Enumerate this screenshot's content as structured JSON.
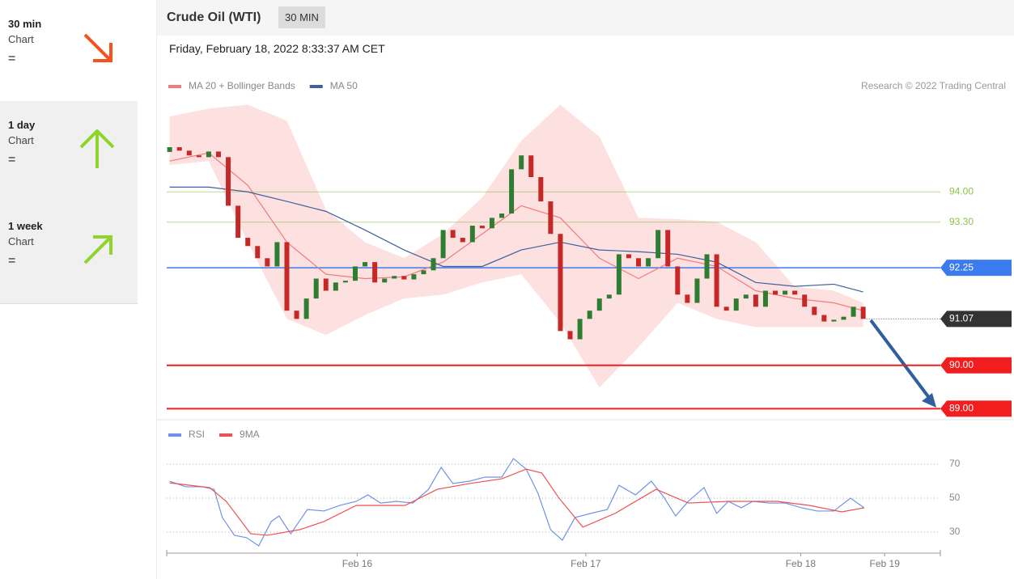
{
  "sidebar": [
    {
      "period": "30 min",
      "label": "Chart",
      "status": "="
    },
    {
      "period": "1 day",
      "label": "Chart",
      "status": "="
    },
    {
      "period": "1 week",
      "label": "Chart",
      "status": "="
    }
  ],
  "header": {
    "title": "Crude Oil (WTI)",
    "badge": "30 MIN",
    "date": "Friday, February 18, 2022 8:33:37 AM CET",
    "credit": "Research © 2022 Trading Central"
  },
  "chart_data": [
    {
      "type": "candlestick",
      "xlim": [
        -0.3,
        78.9
      ],
      "ylim": [
        88.82,
        96.0
      ],
      "up_color": "#2e7d32",
      "down_color": "#c62828",
      "open": [
        94.92,
        95.03,
        94.95,
        94.84,
        94.8,
        94.93,
        94.8,
        93.68,
        92.94,
        92.75,
        92.47,
        92.28,
        92.84,
        91.26,
        91.07,
        91.54,
        92.0,
        91.72,
        91.91,
        91.95,
        92.28,
        92.38,
        91.91,
        92.0,
        92.06,
        91.98,
        92.1,
        92.19,
        92.47,
        93.12,
        92.94,
        92.84,
        93.22,
        93.16,
        93.4,
        93.5,
        94.52,
        94.84,
        94.34,
        93.78,
        93.03,
        90.79,
        90.6,
        91.07,
        91.26,
        91.54,
        91.63,
        92.56,
        92.47,
        92.28,
        92.47,
        93.12,
        92.28,
        91.63,
        91.44,
        92.0,
        92.56,
        91.35,
        91.26,
        91.54,
        91.63,
        91.35,
        91.72,
        91.63,
        91.72,
        91.63,
        91.35,
        91.16,
        91.01,
        91.05,
        91.12,
        91.35
      ],
      "close": [
        95.03,
        94.95,
        94.84,
        94.8,
        94.93,
        94.8,
        93.68,
        92.94,
        92.75,
        92.47,
        92.28,
        92.84,
        91.26,
        91.07,
        91.54,
        92.0,
        91.72,
        91.91,
        91.95,
        92.28,
        92.38,
        91.91,
        92.0,
        92.06,
        91.98,
        92.1,
        92.19,
        92.47,
        93.12,
        92.94,
        92.84,
        93.22,
        93.16,
        93.4,
        93.5,
        94.52,
        94.84,
        94.34,
        93.78,
        93.03,
        90.79,
        90.6,
        91.07,
        91.26,
        91.54,
        91.63,
        92.56,
        92.47,
        92.28,
        92.47,
        93.12,
        92.28,
        91.63,
        91.44,
        92.0,
        92.56,
        91.35,
        91.26,
        91.54,
        91.63,
        91.35,
        91.72,
        91.63,
        91.72,
        91.63,
        91.35,
        91.16,
        91.01,
        91.05,
        91.12,
        91.35,
        91.07
      ],
      "series": [
        {
          "name": "MA 20 + Bollinger Bands",
          "color": "#f27b7b",
          "band_color": "#fde0e0",
          "x": [
            0,
            4,
            8,
            12,
            16,
            20,
            24,
            28,
            32,
            36,
            40,
            44,
            48,
            52,
            56,
            60,
            64,
            68,
            71
          ],
          "values": [
            94.71,
            94.9,
            94.15,
            92.84,
            92.1,
            92.0,
            92.04,
            92.38,
            93.03,
            93.68,
            93.4,
            92.47,
            92.0,
            92.47,
            92.28,
            91.72,
            91.54,
            91.44,
            91.26
          ],
          "upper": [
            95.74,
            95.92,
            96.01,
            95.64,
            93.59,
            92.84,
            92.47,
            93.03,
            93.87,
            95.18,
            96.01,
            95.27,
            93.4,
            93.37,
            93.31,
            92.84,
            91.81,
            91.72,
            91.44
          ],
          "lower": [
            94.62,
            94.71,
            92.84,
            91.07,
            90.7,
            91.16,
            91.54,
            91.63,
            91.91,
            92.1,
            90.98,
            89.49,
            90.42,
            91.44,
            91.07,
            90.88,
            90.88,
            90.88,
            90.88
          ]
        },
        {
          "name": "MA 50",
          "color": "#3f5f9f",
          "x": [
            0,
            4,
            8,
            12,
            16,
            20,
            24,
            28,
            32,
            36,
            40,
            44,
            48,
            52,
            56,
            60,
            64,
            68,
            71
          ],
          "values": [
            94.11,
            94.11,
            94.0,
            93.78,
            93.55,
            93.12,
            92.66,
            92.28,
            92.28,
            92.66,
            92.84,
            92.66,
            92.62,
            92.56,
            92.38,
            91.91,
            91.82,
            91.87,
            91.69
          ]
        }
      ],
      "levels": [
        {
          "value": 94.0,
          "label": "94.00",
          "color": "#8bc34a",
          "style": "plain"
        },
        {
          "value": 93.3,
          "label": "93.30",
          "color": "#8bc34a",
          "style": "plain"
        },
        {
          "value": 92.25,
          "label": "92.25",
          "color": "#3b7bf0",
          "style": "tag"
        },
        {
          "value": 91.07,
          "label": "91.07",
          "color": "#333333",
          "style": "last"
        },
        {
          "value": 90.0,
          "label": "90.00",
          "color": "#f01e1e",
          "style": "tag"
        },
        {
          "value": 89.0,
          "label": "89.00",
          "color": "#f01e1e",
          "style": "tag"
        }
      ]
    },
    {
      "type": "line",
      "xlim": [
        -0.3,
        78.9
      ],
      "ylim": [
        19.5,
        82.4
      ],
      "yticks": [
        30,
        50,
        70
      ],
      "grid": true,
      "xticks": [
        {
          "value": 19.2,
          "label": "Feb 16"
        },
        {
          "value": 42.6,
          "label": "Feb 17"
        },
        {
          "value": 64.6,
          "label": "Feb 18"
        },
        {
          "value": 73.2,
          "label": "Feb 19"
        }
      ],
      "series": [
        {
          "name": "RSI",
          "color": "#6f93e8",
          "x": [
            0,
            1.66,
            3.32,
            4.56,
            5.39,
            6.63,
            7.88,
            9.12,
            10.4,
            11.2,
            12.4,
            14.1,
            15.8,
            17.4,
            19.1,
            20.3,
            21.6,
            23.2,
            24.9,
            26.5,
            27.8,
            29.0,
            30.7,
            32.3,
            34.0,
            35.2,
            36.5,
            37.7,
            39.0,
            40.2,
            41.5,
            43.1,
            44.8,
            46.0,
            47.7,
            49.3,
            50.6,
            51.8,
            53.1,
            54.7,
            56.0,
            57.2,
            58.5,
            59.7,
            61.4,
            63.0,
            64.7,
            66.3,
            68.0,
            69.7,
            71.1
          ],
          "values": [
            60.0,
            56.7,
            56.7,
            55.2,
            38.6,
            28.1,
            26.7,
            21.9,
            36.2,
            39.5,
            29.0,
            43.3,
            42.4,
            45.7,
            48.1,
            51.9,
            47.1,
            48.1,
            47.1,
            55.2,
            68.1,
            58.6,
            60.0,
            62.4,
            62.4,
            73.3,
            67.1,
            52.9,
            31.4,
            25.2,
            38.6,
            41.0,
            43.3,
            57.6,
            51.9,
            60.0,
            50.5,
            39.5,
            48.1,
            56.2,
            41.0,
            48.1,
            44.3,
            48.1,
            47.1,
            47.1,
            44.3,
            42.4,
            42.4,
            50.0,
            44.3
          ]
        },
        {
          "name": "9MA",
          "color": "#f05050",
          "x": [
            0,
            4.1,
            5.8,
            8.3,
            10.0,
            13.3,
            15.8,
            19.1,
            24.1,
            27.4,
            30.7,
            34.0,
            36.5,
            38.1,
            39.8,
            42.3,
            45.6,
            49.8,
            53.1,
            57.2,
            62.2,
            65.5,
            68.8,
            71.1
          ],
          "values": [
            59.0,
            56.2,
            48.1,
            29.0,
            28.1,
            31.4,
            36.2,
            45.7,
            45.7,
            55.2,
            58.6,
            61.4,
            67.1,
            64.8,
            50.5,
            32.9,
            41.0,
            55.2,
            47.1,
            48.1,
            48.1,
            45.7,
            41.9,
            44.3
          ]
        }
      ]
    }
  ]
}
